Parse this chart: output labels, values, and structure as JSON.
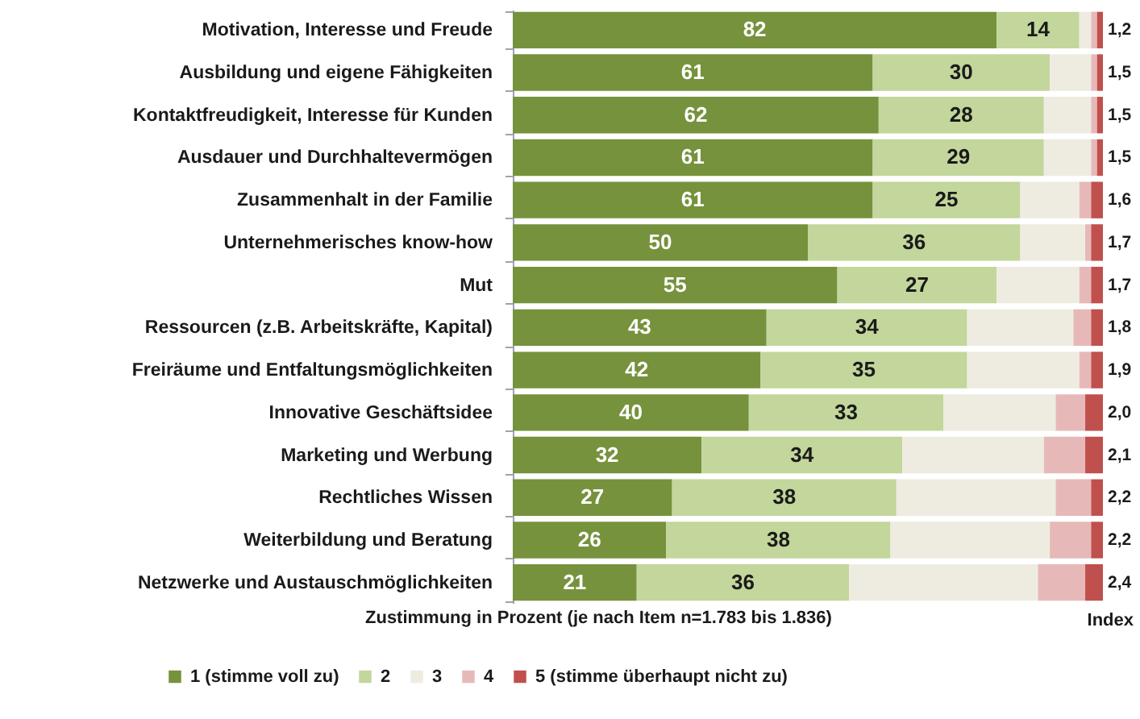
{
  "chart_data": {
    "type": "bar",
    "orientation": "horizontal",
    "stacked": true,
    "categories": [
      "Motivation, Interesse und Freude",
      "Ausbildung und eigene Fähigkeiten",
      "Kontaktfreudigkeit, Interesse für Kunden",
      "Ausdauer und Durchhaltevermögen",
      "Zusammenhalt in der Familie",
      "Unternehmerisches know-how",
      "Mut",
      "Ressourcen (z.B. Arbeitskräfte, Kapital)",
      "Freiräume und Entfaltungsmöglichkeiten",
      "Innovative Geschäftsidee",
      "Marketing und Werbung",
      "Rechtliches Wissen",
      "Weiterbildung und Beratung",
      "Netzwerke und Austauschmöglichkeiten"
    ],
    "series": [
      {
        "name": "1 (stimme voll zu)",
        "color": "#76923c",
        "values": [
          82,
          61,
          62,
          61,
          61,
          50,
          55,
          43,
          42,
          40,
          32,
          27,
          26,
          21
        ],
        "value_labels": [
          "82",
          "61",
          "62",
          "61",
          "61",
          "50",
          "55",
          "43",
          "42",
          "40",
          "32",
          "27",
          "26",
          "21"
        ]
      },
      {
        "name": "2",
        "color": "#c3d69b",
        "values": [
          14,
          30,
          28,
          29,
          25,
          36,
          27,
          34,
          35,
          33,
          34,
          38,
          38,
          36
        ],
        "value_labels": [
          "14",
          "30",
          "28",
          "29",
          "25",
          "36",
          "27",
          "34",
          "35",
          "33",
          "34",
          "38",
          "38",
          "36"
        ]
      },
      {
        "name": "3",
        "color": "#eeece1",
        "values": [
          2,
          7,
          8,
          8,
          10,
          11,
          14,
          18,
          19,
          19,
          24,
          27,
          27,
          32
        ]
      },
      {
        "name": "4",
        "color": "#e6b9b8",
        "values": [
          1,
          1,
          1,
          1,
          2,
          1,
          2,
          3,
          2,
          5,
          7,
          6,
          7,
          8
        ]
      },
      {
        "name": "5 (stimme überhaupt nicht zu)",
        "color": "#c0504d",
        "values": [
          1,
          1,
          1,
          1,
          2,
          2,
          2,
          2,
          2,
          3,
          3,
          2,
          2,
          3
        ]
      }
    ],
    "xlim": [
      0,
      100
    ],
    "xlabel": "Zustimmung in Prozent (je nach Item n=1.783 bis 1.836)",
    "tick_labels": "y",
    "legend": "bottom",
    "annotations": [
      "1,2",
      "1,5",
      "1,5",
      "1,5",
      "1,6",
      "1,7",
      "1,7",
      "1,8",
      "1,9",
      "2,0",
      "2,1",
      "2,2",
      "2,2",
      "2,4",
      "Index"
    ]
  }
}
